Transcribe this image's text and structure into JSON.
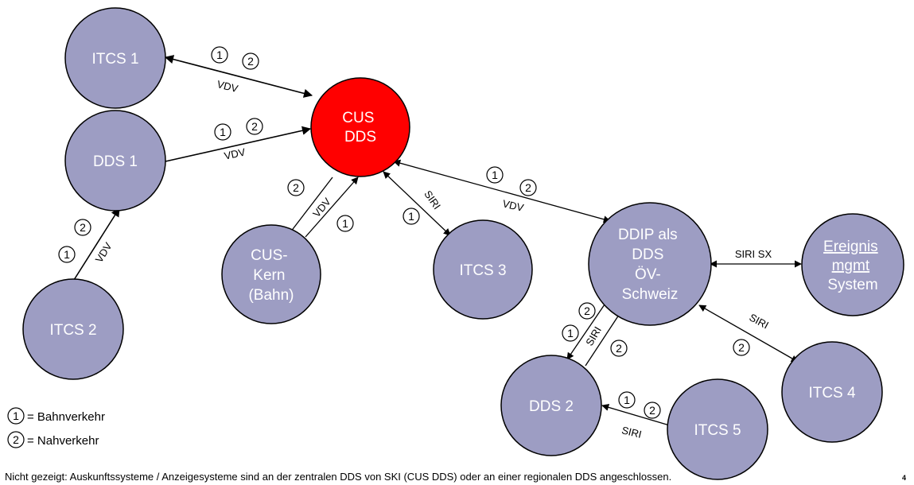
{
  "colors": {
    "node_fill": "#9d9dc3",
    "node_stroke": "#000000",
    "hub_fill": "#ff0000",
    "edge": "#000000"
  },
  "nodes": {
    "itcs1": {
      "lines": [
        "ITCS 1"
      ]
    },
    "dds1": {
      "lines": [
        "DDS 1"
      ]
    },
    "itcs2": {
      "lines": [
        "ITCS 2"
      ]
    },
    "cus_dds": {
      "lines": [
        "CUS",
        "DDS"
      ]
    },
    "cus_kern": {
      "lines": [
        "CUS-",
        "Kern",
        "(Bahn)"
      ]
    },
    "itcs3": {
      "lines": [
        "ITCS 3"
      ]
    },
    "ddip": {
      "lines": [
        "DDIP als",
        "DDS",
        "ÖV-",
        "Schweiz"
      ]
    },
    "ereignis": {
      "lines": [
        "Ereignis",
        "mgmt",
        "System"
      ]
    },
    "itcs4": {
      "lines": [
        "ITCS 4"
      ]
    },
    "dds2": {
      "lines": [
        "DDS 2"
      ]
    },
    "itcs5": {
      "lines": [
        "ITCS 5"
      ]
    }
  },
  "edge_labels": {
    "itcs1_cus": "VDV",
    "dds1_cus": "VDV",
    "itcs2_dds1": "VDV",
    "cus_kern": "VDV",
    "cus_itcs3": "SIRI",
    "cus_ddip": "VDV",
    "ddip_ereignis": "SIRI SX",
    "ddip_itcs4": "SIRI",
    "ddip_dds2": "SIRI",
    "itcs5_dds2": "SIRI"
  },
  "badges": {
    "one": "1",
    "two": "2"
  },
  "legend": {
    "bahn": "= Bahnverkehr",
    "nah": "= Nahverkehr"
  },
  "footnote": "Nicht gezeigt: Auskunftssysteme / Anzeigesysteme sind an der zentralen DDS von SKI (CUS DDS) oder an einer regionalen DDS angeschlossen.",
  "page_number": "4"
}
